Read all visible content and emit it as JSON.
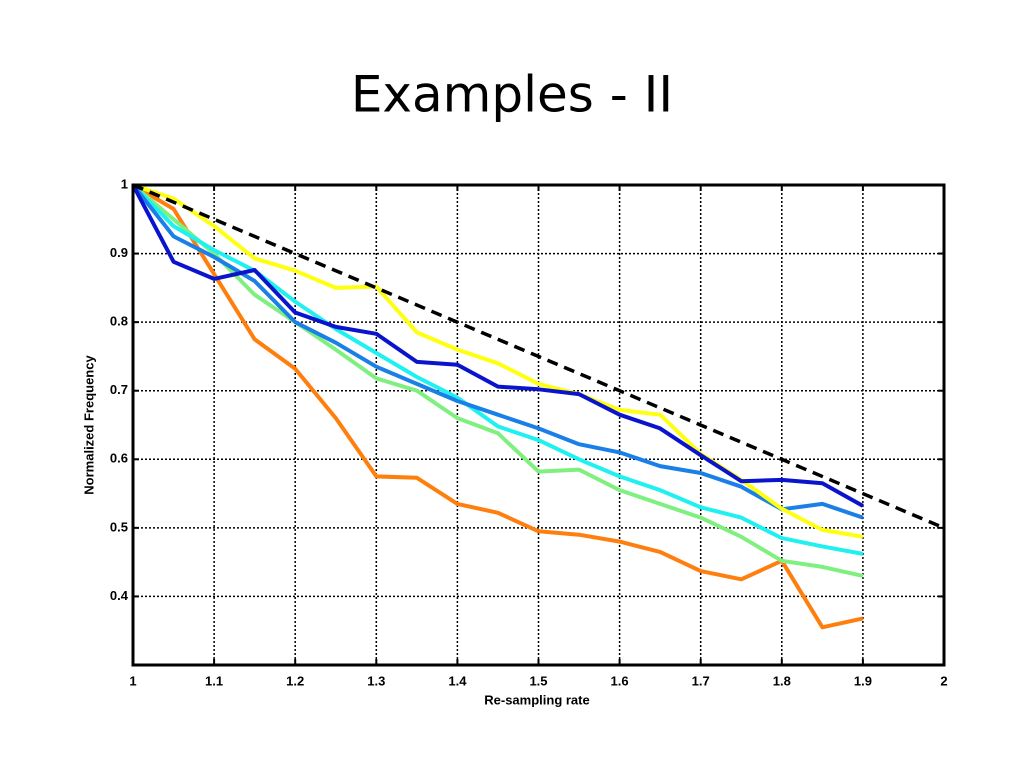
{
  "chart_data": {
    "type": "line",
    "title": "Examples  - II",
    "xlabel": "Re-sampling rate",
    "ylabel": "Normalized Frequency",
    "x": [
      1,
      1.05,
      1.1,
      1.15,
      1.2,
      1.25,
      1.3,
      1.35,
      1.4,
      1.45,
      1.5,
      1.55,
      1.6,
      1.65,
      1.7,
      1.75,
      1.8,
      1.85,
      1.9
    ],
    "series": [
      {
        "color": "#ff7f0e",
        "values": [
          1,
          0.965,
          0.87,
          0.775,
          0.732,
          0.66,
          0.575,
          0.573,
          0.535,
          0.522,
          0.495,
          0.49,
          0.48,
          0.465,
          0.437,
          0.425,
          0.452,
          0.355,
          0.368
        ]
      },
      {
        "color": "#7ff07f",
        "values": [
          1,
          0.95,
          0.9,
          0.84,
          0.8,
          0.76,
          0.718,
          0.7,
          0.66,
          0.638,
          0.582,
          0.585,
          0.555,
          0.535,
          0.515,
          0.487,
          0.452,
          0.443,
          0.43
        ]
      },
      {
        "color": "#20f0f0",
        "values": [
          1,
          0.94,
          0.905,
          0.875,
          0.83,
          0.79,
          0.755,
          0.72,
          0.69,
          0.648,
          0.628,
          0.6,
          0.575,
          0.555,
          0.53,
          0.515,
          0.485,
          0.473,
          0.462
        ]
      },
      {
        "color": "#1a7fe6",
        "values": [
          1,
          0.925,
          0.895,
          0.86,
          0.8,
          0.77,
          0.735,
          0.71,
          0.685,
          0.665,
          0.645,
          0.622,
          0.61,
          0.59,
          0.58,
          0.56,
          0.527,
          0.535,
          0.515
        ]
      },
      {
        "color": "#ffff10",
        "values": [
          1,
          0.98,
          0.94,
          0.893,
          0.875,
          0.85,
          0.852,
          0.785,
          0.76,
          0.74,
          0.71,
          0.695,
          0.672,
          0.665,
          0.608,
          0.57,
          0.528,
          0.497,
          0.487
        ]
      },
      {
        "color": "#0a14cc",
        "values": [
          1,
          0.888,
          0.863,
          0.876,
          0.814,
          0.793,
          0.783,
          0.742,
          0.738,
          0.706,
          0.702,
          0.695,
          0.665,
          0.645,
          0.606,
          0.568,
          0.57,
          0.565,
          0.532
        ]
      },
      {
        "color": "#000000",
        "dash": true,
        "x": [
          1,
          2
        ],
        "values": [
          1,
          0.5
        ]
      }
    ],
    "xlim": [
      1,
      2
    ],
    "xticks": [
      1,
      1.1,
      1.2,
      1.3,
      1.4,
      1.5,
      1.6,
      1.7,
      1.8,
      1.9,
      2
    ],
    "ylim": [
      0.3,
      1
    ],
    "yticks": [
      0.4,
      0.5,
      0.6,
      0.7,
      0.8,
      0.9,
      1
    ],
    "grid": true
  }
}
